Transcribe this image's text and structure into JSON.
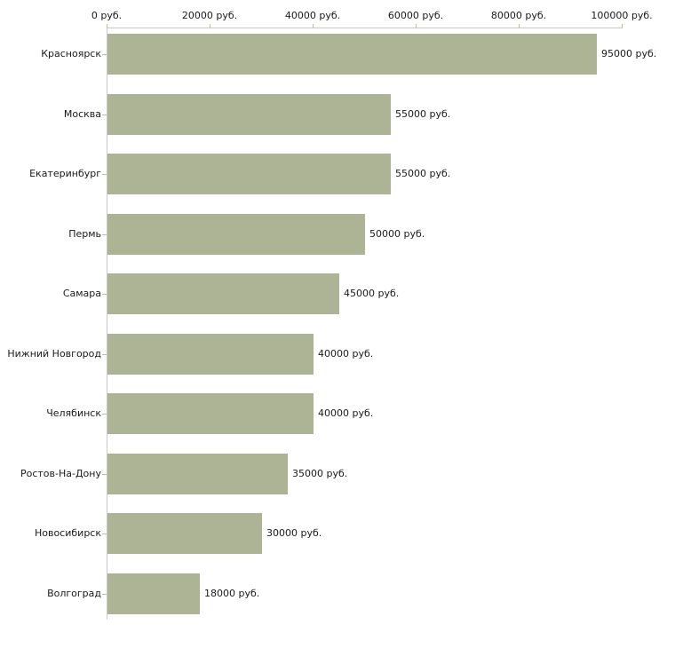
{
  "chart_data": {
    "type": "bar",
    "orientation": "horizontal",
    "title": "",
    "unit": "руб.",
    "categories": [
      "Красноярск",
      "Москва",
      "Екатеринбург",
      "Пермь",
      "Самара",
      "Нижний Новгород",
      "Челябинск",
      "Ростов-На-Дону",
      "Новосибирск",
      "Волгоград"
    ],
    "values": [
      95000,
      55000,
      55000,
      50000,
      45000,
      40000,
      40000,
      35000,
      30000,
      18000
    ],
    "bar_labels": [
      "95000 руб.",
      "55000 руб.",
      "55000 руб.",
      "50000 руб.",
      "45000 руб.",
      "40000 руб.",
      "40000 руб.",
      "35000 руб.",
      "30000 руб.",
      "18000 руб."
    ],
    "x_axis": {
      "position": "top",
      "min": 0,
      "max": 100000,
      "ticks": [
        0,
        20000,
        40000,
        60000,
        80000,
        100000
      ],
      "tick_labels": [
        "0 руб.",
        "20000 руб.",
        "40000 руб.",
        "60000 руб.",
        "80000 руб.",
        "100000 руб."
      ]
    },
    "grid": false,
    "legend": null,
    "colors": {
      "bar": "#adb395",
      "axis_line": "#c9c9c9",
      "tick_mark": "#bcbf97",
      "text": "#1a1a1a",
      "background": "#ffffff"
    }
  }
}
